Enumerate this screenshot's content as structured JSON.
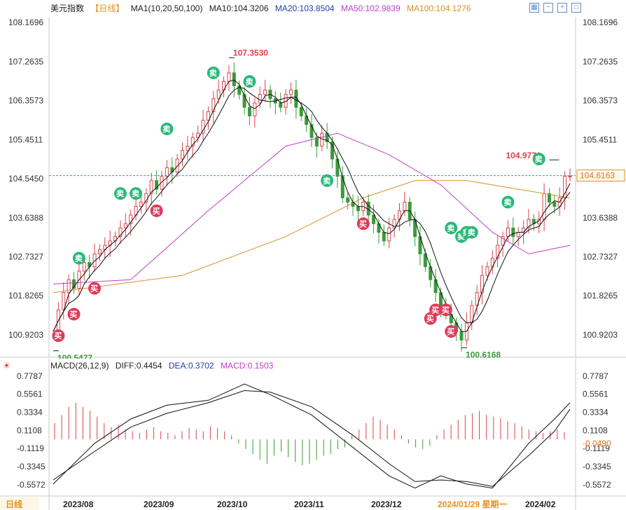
{
  "header": {
    "symbol": "美元指数",
    "period": "【日线】",
    "ma_group": "MA1(10,20,50,100)",
    "ma10": "MA10:104.3206",
    "ma20": "MA20:103.8504",
    "ma50": "MA50:102.9839",
    "ma100": "MA100:104.1276",
    "tool_icons": [
      "grid-icon",
      "zoom-out-icon",
      "zoom-in-icon",
      "maximize-icon"
    ]
  },
  "colors": {
    "up": "#d9434b",
    "down": "#3a9a3a",
    "ma10": "#111111",
    "ma20": "#111111",
    "ma50": "#c040c8",
    "ma100": "#d8902a",
    "dif": "#111111",
    "dea": "#111111",
    "current_line": "#3a8fd0",
    "sell_bg": "#2ab77a",
    "buy_bg": "#e0395a"
  },
  "chart_data": {
    "type": "candlestick",
    "price_axis_ticks": [
      "108.1696",
      "107.2635",
      "106.3573",
      "105.4511",
      "104.5450",
      "103.6388",
      "102.7327",
      "101.8265",
      "100.9203"
    ],
    "price_range": [
      100.4,
      108.3
    ],
    "current_price": "104.6163",
    "high_label": "107.3530",
    "low_labels": [
      "100.5477",
      "100.6168"
    ],
    "recent_high_label": "104.9771",
    "time_labels": [
      "2023/08",
      "2023/09",
      "2023/10",
      "2023/11",
      "2023/12",
      "2024/01/29 星期一",
      "2024/02"
    ],
    "period_tag": "日线",
    "signals": {
      "sell": "卖",
      "buy": "买"
    },
    "close_path": [
      [
        0,
        101.0
      ],
      [
        1,
        101.5
      ],
      [
        2,
        101.9
      ],
      [
        3,
        102.2
      ],
      [
        4,
        102.0
      ],
      [
        5,
        102.4
      ],
      [
        6,
        102.6
      ],
      [
        7,
        102.5
      ],
      [
        8,
        102.8
      ],
      [
        9,
        102.9
      ],
      [
        10,
        103.0
      ],
      [
        11,
        103.1
      ],
      [
        12,
        103.2
      ],
      [
        13,
        103.4
      ],
      [
        14,
        103.5
      ],
      [
        15,
        103.7
      ],
      [
        16,
        103.9
      ],
      [
        17,
        104.0
      ],
      [
        18,
        104.2
      ],
      [
        19,
        104.5
      ],
      [
        20,
        104.3
      ],
      [
        21,
        104.6
      ],
      [
        22,
        104.8
      ],
      [
        23,
        104.7
      ],
      [
        24,
        105.0
      ],
      [
        25,
        105.2
      ],
      [
        26,
        105.3
      ],
      [
        27,
        105.5
      ],
      [
        28,
        105.6
      ],
      [
        29,
        105.9
      ],
      [
        30,
        106.1
      ],
      [
        31,
        106.4
      ],
      [
        32,
        106.6
      ],
      [
        33,
        106.8
      ],
      [
        34,
        107.0
      ],
      [
        35,
        106.7
      ],
      [
        36,
        106.5
      ],
      [
        37,
        106.2
      ],
      [
        38,
        106.0
      ],
      [
        39,
        106.3
      ],
      [
        40,
        106.5
      ],
      [
        41,
        106.6
      ],
      [
        42,
        106.4
      ],
      [
        43,
        106.3
      ],
      [
        44,
        106.2
      ],
      [
        45,
        106.5
      ],
      [
        46,
        106.6
      ],
      [
        47,
        106.2
      ],
      [
        48,
        106.0
      ],
      [
        49,
        105.8
      ],
      [
        50,
        105.5
      ],
      [
        51,
        105.3
      ],
      [
        52,
        105.6
      ],
      [
        53,
        105.4
      ],
      [
        54,
        105.0
      ],
      [
        55,
        104.6
      ],
      [
        56,
        104.1
      ],
      [
        57,
        104.0
      ],
      [
        58,
        103.9
      ],
      [
        59,
        103.8
      ],
      [
        60,
        104.0
      ],
      [
        61,
        103.7
      ],
      [
        62,
        103.5
      ],
      [
        63,
        103.3
      ],
      [
        64,
        103.1
      ],
      [
        65,
        103.4
      ],
      [
        66,
        103.6
      ],
      [
        67,
        103.8
      ],
      [
        68,
        104.0
      ],
      [
        69,
        103.6
      ],
      [
        70,
        103.2
      ],
      [
        71,
        102.8
      ],
      [
        72,
        102.5
      ],
      [
        73,
        102.2
      ],
      [
        74,
        101.9
      ],
      [
        75,
        101.6
      ],
      [
        76,
        101.4
      ],
      [
        77,
        101.2
      ],
      [
        78,
        101.0
      ],
      [
        79,
        100.8
      ],
      [
        80,
        101.2
      ],
      [
        81,
        101.6
      ],
      [
        82,
        101.9
      ],
      [
        83,
        102.3
      ],
      [
        84,
        102.5
      ],
      [
        85,
        102.7
      ],
      [
        86,
        103.0
      ],
      [
        87,
        103.2
      ],
      [
        88,
        103.4
      ],
      [
        89,
        103.2
      ],
      [
        90,
        103.3
      ],
      [
        91,
        103.4
      ],
      [
        92,
        103.6
      ],
      [
        93,
        103.5
      ],
      [
        94,
        103.6
      ],
      [
        95,
        104.2
      ],
      [
        96,
        104.0
      ],
      [
        97,
        103.9
      ],
      [
        98,
        104.1
      ],
      [
        99,
        104.6
      ],
      [
        100,
        104.6
      ]
    ],
    "ma100_path": [
      [
        0,
        101.9
      ],
      [
        25,
        102.3
      ],
      [
        45,
        103.2
      ],
      [
        60,
        104.1
      ],
      [
        70,
        104.5
      ],
      [
        80,
        104.5
      ],
      [
        90,
        104.3
      ],
      [
        100,
        104.1
      ]
    ],
    "ma50_path": [
      [
        0,
        102.1
      ],
      [
        15,
        102.2
      ],
      [
        30,
        103.8
      ],
      [
        45,
        105.3
      ],
      [
        55,
        105.6
      ],
      [
        65,
        105.1
      ],
      [
        75,
        104.4
      ],
      [
        85,
        103.3
      ],
      [
        92,
        102.8
      ],
      [
        100,
        103.0
      ]
    ],
    "macd": {
      "params": "MACD(26,12,9)",
      "diff_label": "DIFF:0.4454",
      "dea_label": "DEA:0.3702",
      "macd_label": "MACD:0.1503",
      "axis_ticks": [
        "0.7787",
        "0.5561",
        "0.3334",
        "0.1108",
        "-0.1119",
        "-0.3345",
        "-0.5572"
      ],
      "current_tag": "-0.0490",
      "range": [
        -0.68,
        0.82
      ],
      "diff": [
        [
          0,
          -0.55
        ],
        [
          8,
          -0.05
        ],
        [
          15,
          0.25
        ],
        [
          22,
          0.42
        ],
        [
          30,
          0.48
        ],
        [
          37,
          0.68
        ],
        [
          42,
          0.55
        ],
        [
          50,
          0.3
        ],
        [
          58,
          -0.1
        ],
        [
          65,
          -0.45
        ],
        [
          70,
          -0.6
        ],
        [
          75,
          -0.45
        ],
        [
          80,
          -0.55
        ],
        [
          85,
          -0.6
        ],
        [
          92,
          -0.05
        ],
        [
          97,
          0.25
        ],
        [
          100,
          0.45
        ]
      ],
      "dea": [
        [
          0,
          -0.5
        ],
        [
          8,
          -0.15
        ],
        [
          15,
          0.15
        ],
        [
          22,
          0.32
        ],
        [
          30,
          0.45
        ],
        [
          37,
          0.6
        ],
        [
          42,
          0.58
        ],
        [
          50,
          0.4
        ],
        [
          58,
          0.05
        ],
        [
          65,
          -0.3
        ],
        [
          70,
          -0.52
        ],
        [
          75,
          -0.5
        ],
        [
          80,
          -0.52
        ],
        [
          85,
          -0.58
        ],
        [
          92,
          -0.2
        ],
        [
          97,
          0.1
        ],
        [
          100,
          0.37
        ]
      ],
      "bars": [
        0.2,
        0.3,
        0.4,
        0.45,
        0.4,
        0.35,
        0.28,
        0.2,
        0.15,
        0.18,
        0.12,
        0.1,
        0.08,
        0.12,
        0.15,
        0.1,
        0.08,
        0.05,
        0.1,
        0.14,
        0.12,
        0.1,
        0.16,
        0.14,
        0.1,
        0.05,
        -0.05,
        -0.12,
        -0.18,
        -0.25,
        -0.3,
        -0.2,
        -0.15,
        -0.22,
        -0.28,
        -0.32,
        -0.3,
        -0.25,
        -0.2,
        -0.18,
        -0.12,
        -0.1,
        0.05,
        0.12,
        0.2,
        0.28,
        0.24,
        0.18,
        0.12,
        0.05,
        -0.05,
        -0.1,
        -0.12,
        -0.08,
        0.05,
        0.12,
        0.18,
        0.24,
        0.3,
        0.32,
        0.35,
        0.3,
        0.28,
        0.26,
        0.22,
        0.2,
        0.16,
        0.12,
        0.1,
        0.08,
        0.1,
        0.12,
        0.09
      ]
    }
  }
}
